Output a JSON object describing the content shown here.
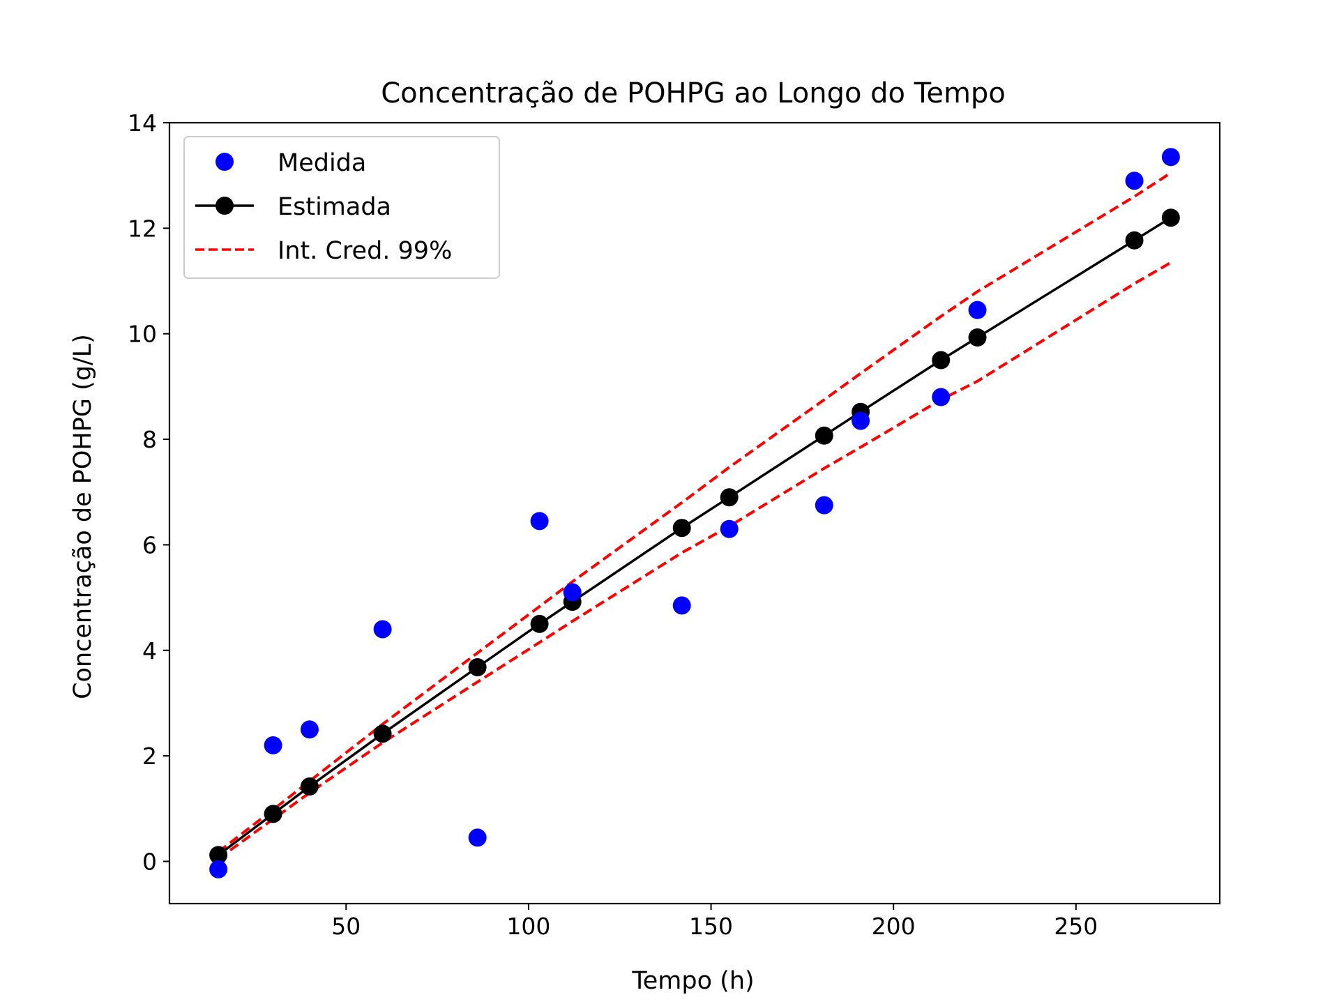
{
  "chart_data": {
    "type": "line",
    "title": "Concentração de POHPG ao Longo do Tempo",
    "xlabel": "Tempo (h)",
    "ylabel": "Concentração de POHPG (g/L)",
    "xlim": [
      1.6,
      289.4
    ],
    "ylim": [
      -0.8,
      14.0
    ],
    "xticks": [
      50,
      100,
      150,
      200,
      250
    ],
    "yticks": [
      0,
      2,
      4,
      6,
      8,
      10,
      12,
      14
    ],
    "grid": false,
    "legend_position": "top-left",
    "x": [
      15,
      30,
      40,
      60,
      86,
      103,
      112,
      142,
      155,
      181,
      191,
      213,
      223,
      266,
      276
    ],
    "series": [
      {
        "name": "Medida",
        "kind": "scatter",
        "color": "#0000ff",
        "values": [
          -0.15,
          2.2,
          2.5,
          4.4,
          0.45,
          6.45,
          5.1,
          4.85,
          6.3,
          6.75,
          8.35,
          8.8,
          10.45,
          12.9,
          13.35
        ]
      },
      {
        "name": "Estimada",
        "kind": "line-marker",
        "color": "#000000",
        "values": [
          0.12,
          0.9,
          1.42,
          2.42,
          3.68,
          4.5,
          4.92,
          6.32,
          6.9,
          8.07,
          8.52,
          9.5,
          9.93,
          11.77,
          12.2
        ]
      },
      {
        "name": "Int. Cred. 99%",
        "kind": "dashed-band",
        "color": "#ff0000",
        "upper": [
          0.18,
          0.98,
          1.52,
          2.6,
          3.95,
          4.83,
          5.3,
          6.8,
          7.47,
          8.75,
          9.25,
          10.33,
          10.8,
          12.6,
          13.05
        ],
        "lower": [
          0.05,
          0.8,
          1.3,
          2.25,
          3.4,
          4.15,
          4.55,
          5.85,
          6.35,
          7.45,
          7.85,
          8.75,
          9.1,
          10.95,
          11.35
        ]
      }
    ]
  }
}
